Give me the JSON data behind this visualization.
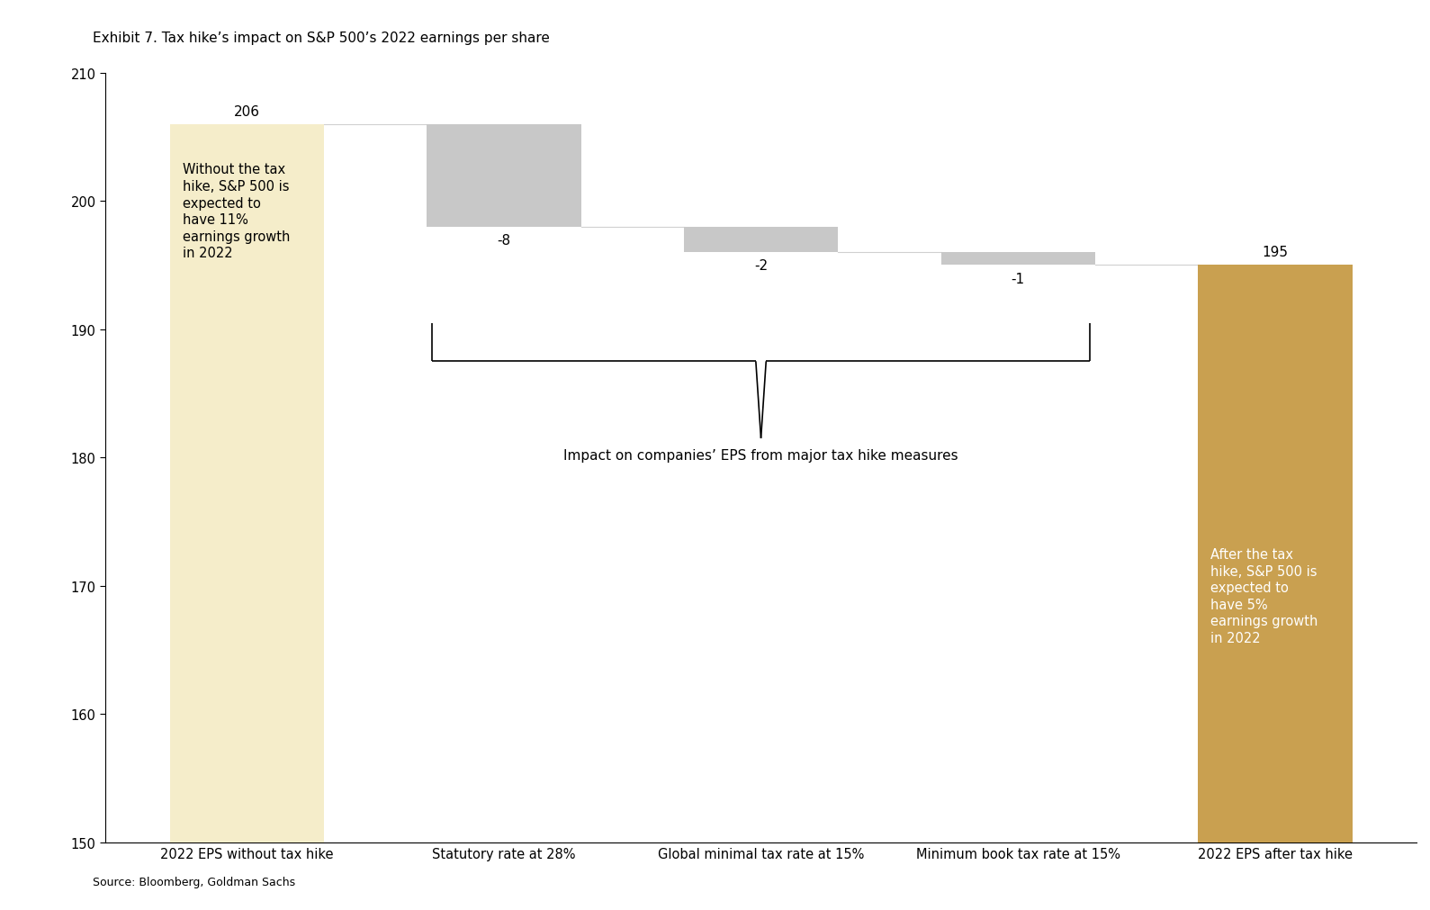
{
  "title": "Exhibit 7. Tax hike’s impact on S&P 500’s 2022 earnings per share",
  "source": "Source: Bloomberg, Goldman Sachs",
  "categories": [
    "2022 EPS without tax hike",
    "Statutory rate at 28%",
    "Global minimal tax rate at 15%",
    "Minimum book tax rate at 15%",
    "2022 EPS after tax hike"
  ],
  "values": [
    206,
    -8,
    -2,
    -1,
    195
  ],
  "bar_bottoms": [
    150,
    198,
    196,
    195,
    150
  ],
  "bar_heights": [
    56,
    8,
    2,
    1,
    45
  ],
  "bar_colors": [
    "#f5edca",
    "#c8c8c8",
    "#c8c8c8",
    "#c8c8c8",
    "#c9a050"
  ],
  "bar_labels": [
    "206",
    "-8",
    "-2",
    "-1",
    "195"
  ],
  "ylim": [
    150,
    210
  ],
  "yticks": [
    150,
    160,
    170,
    180,
    190,
    200,
    210
  ],
  "annotation_text": "Impact on companies’ EPS from major tax hike measures",
  "text_bar1": "Without the tax\nhike, S&P 500 is\nexpected to\nhave 11%\nearnings growth\nin 2022",
  "text_bar5": "After the tax\nhike, S&P 500 is\nexpected to\nhave 5%\nearnings growth\nin 2022",
  "bg_color": "#ffffff",
  "connector_color": "#d0d0d0",
  "bracket_color": "#000000",
  "label_fontsize": 11,
  "text_fontsize": 10.5,
  "annot_fontsize": 11,
  "title_fontsize": 11,
  "source_fontsize": 9,
  "xtick_fontsize": 10.5,
  "ytick_fontsize": 10.5,
  "bar_width": 0.6
}
